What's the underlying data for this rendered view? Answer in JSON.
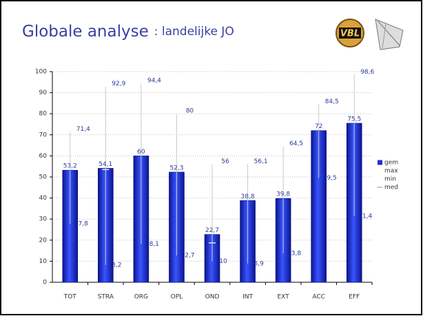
{
  "slide": {
    "title_main": "Globale analyse",
    "title_sub": ": landelijke JO",
    "logo_text": "VBL"
  },
  "chart_data": {
    "type": "bar",
    "categories": [
      "TOT",
      "STRA",
      "ORG",
      "OPL",
      "OND",
      "INT",
      "EXT",
      "ACC",
      "EFF"
    ],
    "series": [
      {
        "name": "gem",
        "color": "#1f2fd0",
        "values": [
          53.2,
          54.1,
          60,
          52.3,
          22.7,
          38.8,
          39.8,
          72,
          75.5
        ],
        "value_labels": [
          "53,2",
          "54,1",
          "60",
          "52,3",
          "22,7",
          "38,8",
          "39,8",
          "72",
          "75,5"
        ]
      },
      {
        "name": "max",
        "color": "#c8c8c8",
        "values": [
          71.4,
          92.9,
          94.4,
          80,
          56,
          56.1,
          64.5,
          84.5,
          98.6
        ],
        "value_labels": [
          "71,4",
          "92,9",
          "94,4",
          "80",
          "56",
          "56,1",
          "64,5",
          "84,5",
          "98,6"
        ]
      },
      {
        "name": "min",
        "color": "#c8c8c8",
        "values": [
          27.8,
          8.2,
          18.1,
          12.7,
          10,
          8.9,
          13.8,
          49.5,
          31.4
        ],
        "value_labels": [
          "27,8",
          "8,2",
          "18,1",
          "12,7",
          "10",
          "8,9",
          "13,8",
          "49,5",
          "31,4"
        ]
      },
      {
        "name": "med",
        "color": "#e8e8e8",
        "values": [
          null,
          53.5,
          null,
          null,
          18.7,
          null,
          null,
          null,
          null
        ]
      }
    ],
    "ylim": [
      0,
      100
    ],
    "yticks": [
      0,
      10,
      20,
      30,
      40,
      50,
      60,
      70,
      80,
      90,
      100
    ],
    "grid": true
  }
}
